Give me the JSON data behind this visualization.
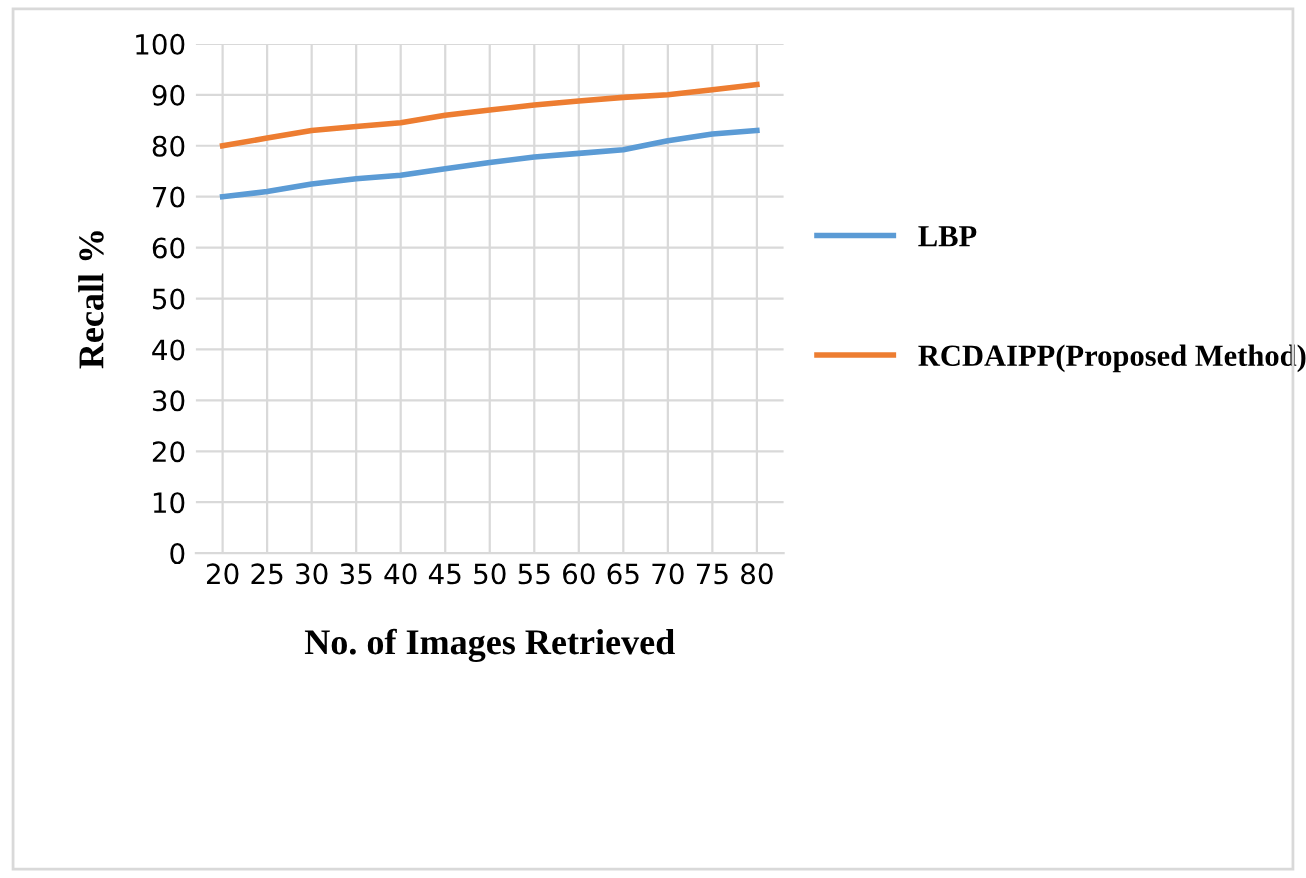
{
  "chart_data": {
    "type": "line",
    "xlabel": "No. of Images Retrieved",
    "ylabel": "Recall %",
    "categories": [
      "20",
      "25",
      "30",
      "35",
      "40",
      "45",
      "50",
      "55",
      "60",
      "65",
      "70",
      "75",
      "80"
    ],
    "series": [
      {
        "name": "LBP",
        "color": "#5b9bd5",
        "values": [
          70,
          71,
          72.5,
          73.5,
          74.2,
          75.5,
          76.7,
          77.8,
          78.5,
          79.2,
          81,
          82.3,
          83
        ]
      },
      {
        "name": "RCDAIPP(Proposed Method)",
        "color": "#ed7d31",
        "values": [
          80,
          81.5,
          83,
          83.8,
          84.5,
          86,
          87,
          88,
          88.8,
          89.5,
          90,
          91,
          92
        ]
      }
    ],
    "ylim": [
      0,
      100
    ],
    "yticks": [
      0,
      10,
      20,
      30,
      40,
      50,
      60,
      70,
      80,
      90,
      100
    ],
    "grid": true,
    "legend": "right",
    "marker": "none",
    "line_style": "solid"
  }
}
